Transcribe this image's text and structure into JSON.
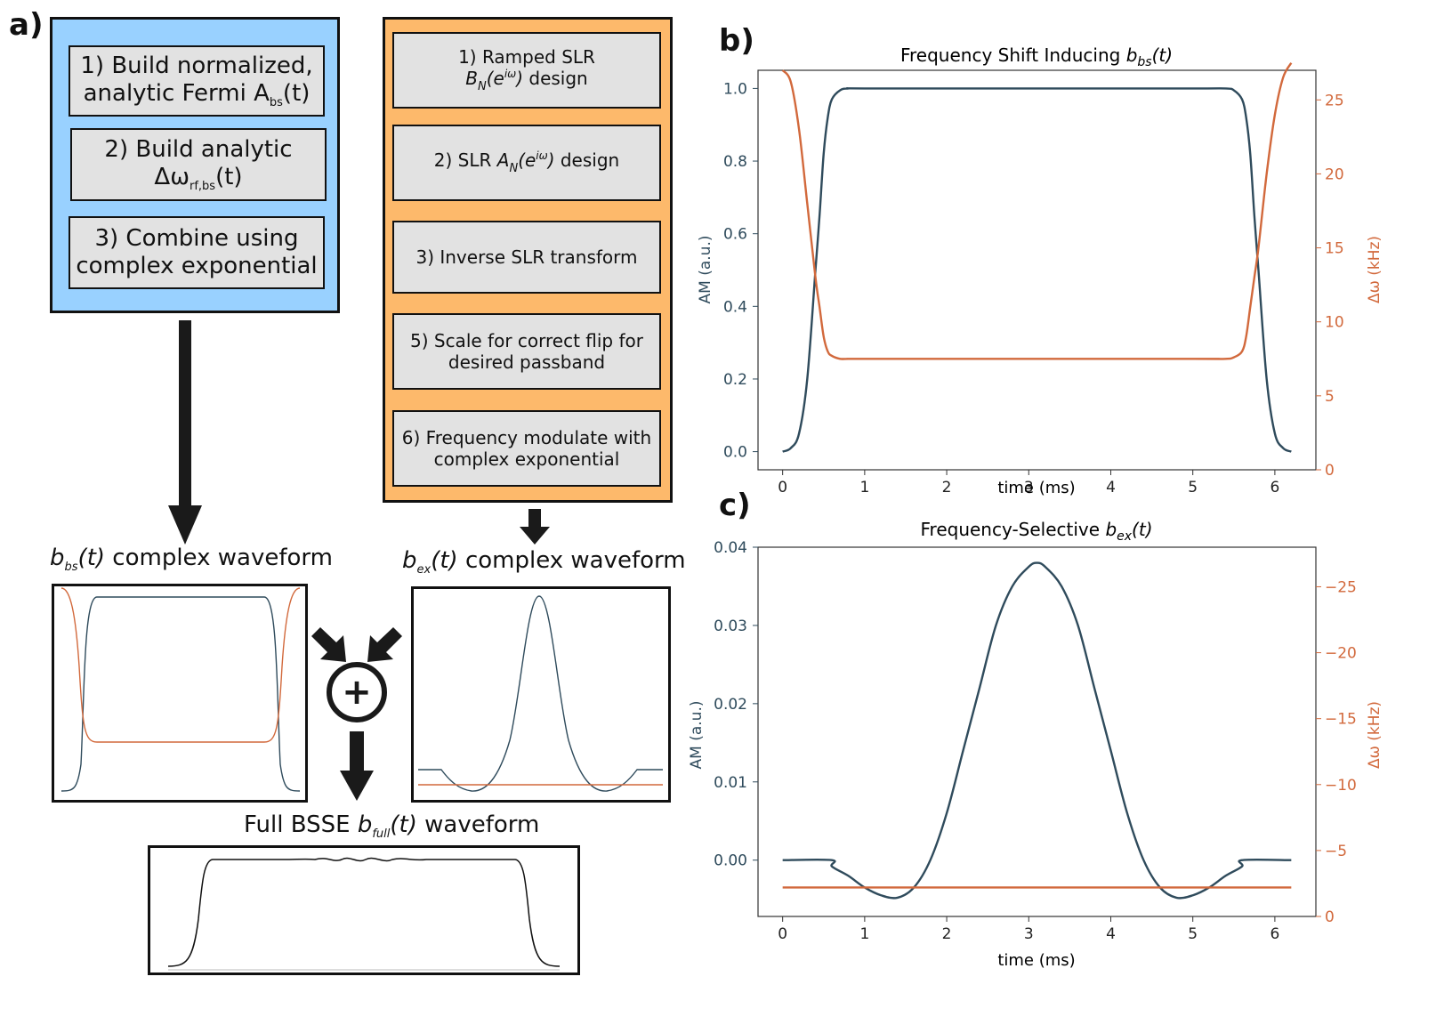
{
  "panel_labels": {
    "a": "a)",
    "b": "b)",
    "c": "c)"
  },
  "left_flow": {
    "analytic_steps": [
      {
        "line1": "1) Build normalized,",
        "line2_pre": "analytic Fermi A",
        "line2_sub": "bs",
        "line2_post": "(t)"
      },
      {
        "line1": "2) Build analytic",
        "line2_pre": "Δω",
        "line2_sub": "rf,bs",
        "line2_post": "(t)"
      },
      {
        "line1": "3) Combine using",
        "line2": "complex exponential"
      }
    ],
    "slr_steps": [
      {
        "line1": "1) Ramped SLR",
        "line2_sym": "B",
        "line2_sub": "N",
        "line2_arg_pre": "(e",
        "line2_sup": "iω",
        "line2_arg_post": ")",
        "line2_post": " design"
      },
      {
        "pre": "2) SLR ",
        "sym": "A",
        "sub": "N",
        "arg_pre": "(e",
        "sup": "iω",
        "arg_post": ")",
        "post": " design"
      },
      {
        "text": "3) Inverse SLR transform"
      },
      {
        "line1": "5) Scale for correct flip for",
        "line2": "desired passband"
      },
      {
        "line1": "6) Frequency modulate with",
        "line2": "complex exponential"
      }
    ],
    "captions": {
      "bs": {
        "sym": "b",
        "sub": "bs",
        "arg": "(t)",
        "text": " complex waveform"
      },
      "ex": {
        "sym": "b",
        "sub": "ex",
        "arg": "(t)",
        "text": " complex waveform"
      },
      "full": {
        "pre": "Full BSSE ",
        "sym": "b",
        "sub": "full",
        "arg": "(t)",
        "text": " waveform"
      }
    },
    "combine_symbol": "+"
  },
  "colors": {
    "am": "#2f4b5c",
    "freq": "#d2693c",
    "blue_box": "#99d1ff",
    "orange_box": "#fdb96b",
    "step_fill": "#e2e2e2"
  },
  "chart_data": [
    {
      "type": "line",
      "title": "Frequency Shift Inducing b_bs(t)",
      "title_pre": "Frequency Shift Inducing ",
      "title_sym": "b",
      "title_sub": "bs",
      "title_arg": "(t)",
      "xlabel": "time (ms)",
      "ylabel": "AM (a.u.)",
      "y2label": "Δω (kHz)",
      "xlim": [
        -0.3,
        6.5
      ],
      "ylim": [
        -0.05,
        1.05
      ],
      "y2lim": [
        0,
        27
      ],
      "xticks": [
        0,
        1,
        2,
        3,
        4,
        5,
        6
      ],
      "yticks": [
        "0.0",
        "0.2",
        "0.4",
        "0.6",
        "0.8",
        "1.0"
      ],
      "y2ticks": [
        "0",
        "5",
        "10",
        "15",
        "20",
        "25"
      ],
      "series": [
        {
          "axis": "left",
          "color": "#2f4b5c",
          "x": [
            0,
            0.1,
            0.2,
            0.3,
            0.4,
            0.45,
            0.5,
            0.55,
            0.6,
            0.7,
            0.8,
            1.0,
            3.0,
            5.0,
            5.4,
            5.5,
            5.6,
            5.65,
            5.7,
            5.75,
            5.8,
            5.9,
            6.0,
            6.1,
            6.2
          ],
          "y": [
            0.0,
            0.01,
            0.05,
            0.2,
            0.5,
            0.65,
            0.82,
            0.92,
            0.97,
            0.995,
            1.0,
            1.0,
            1.0,
            1.0,
            1.0,
            0.995,
            0.97,
            0.92,
            0.82,
            0.65,
            0.5,
            0.2,
            0.05,
            0.01,
            0.0
          ]
        },
        {
          "axis": "right",
          "color": "#d2693c",
          "x": [
            0,
            0.1,
            0.2,
            0.3,
            0.4,
            0.45,
            0.5,
            0.55,
            0.6,
            0.7,
            0.8,
            1.0,
            3.0,
            5.0,
            5.4,
            5.5,
            5.6,
            5.65,
            5.7,
            5.75,
            5.8,
            5.9,
            6.0,
            6.1,
            6.2
          ],
          "y": [
            27.0,
            26.2,
            23.0,
            18.0,
            13.0,
            11.0,
            9.0,
            8.0,
            7.7,
            7.5,
            7.5,
            7.5,
            7.5,
            7.5,
            7.5,
            7.6,
            8.0,
            9.0,
            11.0,
            13.0,
            15.0,
            20.0,
            24.0,
            26.5,
            27.5
          ]
        }
      ]
    },
    {
      "type": "line",
      "title": "Frequency-Selective b_ex(t)",
      "title_pre": "Frequency-Selective ",
      "title_sym": "b",
      "title_sub": "ex",
      "title_arg": "(t)",
      "xlabel": "time (ms)",
      "ylabel": "AM (a.u.)",
      "y2label": "Δω (kHz)",
      "xlim": [
        -0.3,
        6.5
      ],
      "ylim": [
        -0.0072,
        0.04
      ],
      "y2lim": [
        0,
        -28
      ],
      "xticks": [
        0,
        1,
        2,
        3,
        4,
        5,
        6
      ],
      "yticks": [
        "0.00",
        "0.01",
        "0.02",
        "0.03",
        "0.04"
      ],
      "y2ticks": [
        "0",
        "−5",
        "−10",
        "−15",
        "−20",
        "−25"
      ],
      "series": [
        {
          "axis": "left",
          "color": "#2f4b5c",
          "x": [
            0,
            0.6,
            0.6,
            0.8,
            1.0,
            1.2,
            1.4,
            1.6,
            1.8,
            2.0,
            2.2,
            2.4,
            2.6,
            2.8,
            3.0,
            3.1,
            3.2,
            3.4,
            3.6,
            3.8,
            4.0,
            4.2,
            4.4,
            4.6,
            4.8,
            5.0,
            5.2,
            5.4,
            5.6,
            5.6,
            6.2
          ],
          "y": [
            0.0,
            0.0,
            -0.0008,
            -0.002,
            -0.0035,
            -0.0045,
            -0.0048,
            -0.0035,
            0.0,
            0.006,
            0.014,
            0.022,
            0.03,
            0.035,
            0.0375,
            0.038,
            0.0375,
            0.035,
            0.03,
            0.022,
            0.014,
            0.006,
            0.0,
            -0.0035,
            -0.0048,
            -0.0045,
            -0.0035,
            -0.002,
            -0.0008,
            0.0,
            0.0
          ]
        },
        {
          "axis": "right",
          "color": "#d2693c",
          "x": [
            0,
            6.2
          ],
          "y": [
            -2.2,
            -2.2
          ]
        }
      ]
    }
  ]
}
